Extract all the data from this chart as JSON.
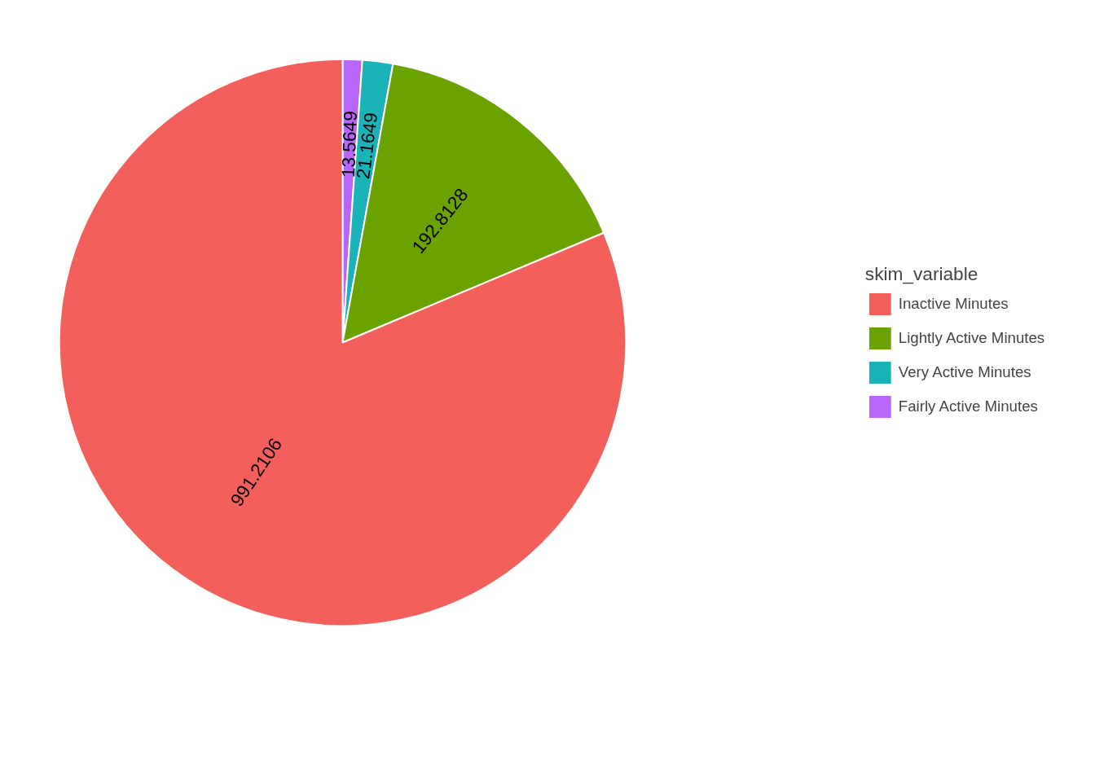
{
  "chart_data": {
    "type": "pie",
    "legend_title": "skim_variable",
    "legend": "right",
    "categories": [
      "Inactive Minutes",
      "Lightly Active Minutes",
      "Very Active Minutes",
      "Fairly Active Minutes"
    ],
    "values": [
      991.2106,
      192.8128,
      21.1649,
      13.5649
    ],
    "colors": [
      "#f35f5b",
      "#6aa300",
      "#1ab3b8",
      "#b866fa"
    ],
    "data_labels": true
  }
}
